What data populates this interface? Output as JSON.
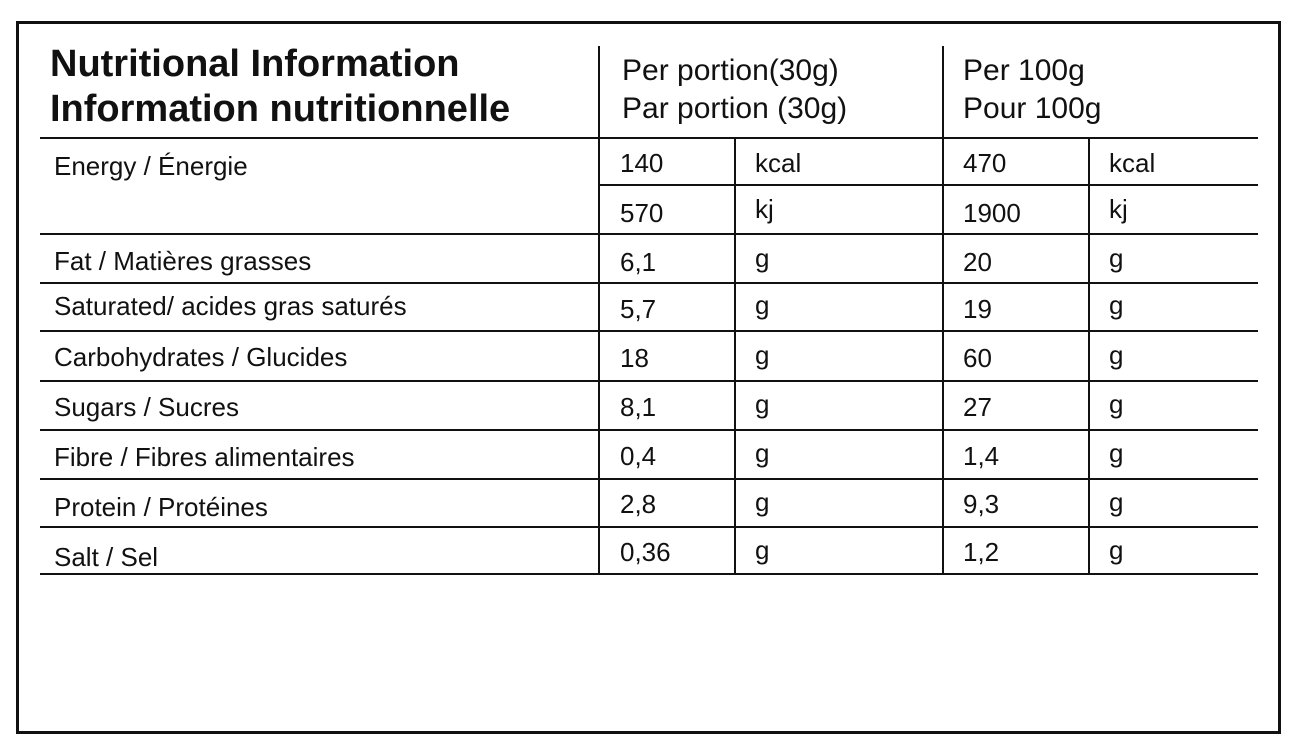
{
  "header": {
    "title_en": "Nutritional Information",
    "title_fr": "Information nutritionnelle",
    "per_portion_en": "Per portion(30g)",
    "per_portion_fr": "Par portion (30g)",
    "per_100g_en": "Per 100g",
    "per_100g_fr": "Pour 100g"
  },
  "rows": [
    {
      "label": "Energy / Énergie",
      "portion_value": "140",
      "portion_unit": "kcal",
      "per100_value": "470",
      "per100_unit": "kcal"
    },
    {
      "label": "",
      "portion_value": "570",
      "portion_unit": "kj",
      "per100_value": "1900",
      "per100_unit": "kj"
    },
    {
      "label": "Fat / Matières grasses",
      "portion_value": "6,1",
      "portion_unit": "g",
      "per100_value": "20",
      "per100_unit": "g"
    },
    {
      "label": "Saturated/ acides gras saturés",
      "portion_value": "5,7",
      "portion_unit": "g",
      "per100_value": "19",
      "per100_unit": "g"
    },
    {
      "label": "Carbohydrates / Glucides",
      "portion_value": "18",
      "portion_unit": "g",
      "per100_value": "60",
      "per100_unit": "g"
    },
    {
      "label": "Sugars / Sucres",
      "portion_value": "8,1",
      "portion_unit": "g",
      "per100_value": "27",
      "per100_unit": "g"
    },
    {
      "label": "Fibre / Fibres alimentaires",
      "portion_value": "0,4",
      "portion_unit": "g",
      "per100_value": "1,4",
      "per100_unit": "g"
    },
    {
      "label": "Protein / Protéines",
      "portion_value": "2,8",
      "portion_unit": "g",
      "per100_value": "9,3",
      "per100_unit": "g"
    },
    {
      "label": "Salt / Sel",
      "portion_value": "0,36",
      "portion_unit": "g",
      "per100_value": "1,2",
      "per100_unit": "g"
    }
  ]
}
